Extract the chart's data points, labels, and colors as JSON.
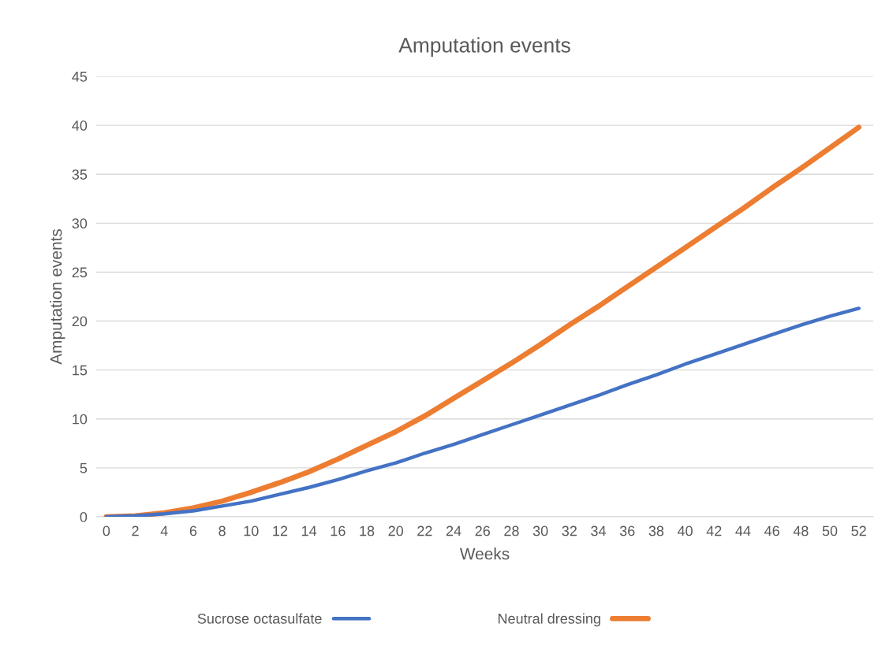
{
  "chart_data": {
    "type": "line",
    "title": "Amputation events",
    "xlabel": "Weeks",
    "ylabel": "Amputation events",
    "x": [
      0,
      2,
      4,
      6,
      8,
      10,
      12,
      14,
      16,
      18,
      20,
      22,
      24,
      26,
      28,
      30,
      32,
      34,
      36,
      38,
      40,
      42,
      44,
      46,
      48,
      50,
      52
    ],
    "series": [
      {
        "name": "Sucrose octasulfate",
        "color": "#4472c4",
        "values": [
          0,
          0.1,
          0.3,
          0.6,
          1.1,
          1.6,
          2.3,
          3.0,
          3.8,
          4.7,
          5.5,
          6.5,
          7.4,
          8.4,
          9.4,
          10.4,
          11.4,
          12.4,
          13.5,
          14.5,
          15.6,
          16.6,
          17.6,
          18.6,
          19.6,
          20.5,
          21.3
        ]
      },
      {
        "name": "Neutral dressing",
        "color": "#ed7d31",
        "values": [
          0,
          0.1,
          0.4,
          0.9,
          1.6,
          2.5,
          3.5,
          4.6,
          5.9,
          7.3,
          8.7,
          10.3,
          12.1,
          13.9,
          15.7,
          17.6,
          19.6,
          21.5,
          23.5,
          25.5,
          27.5,
          29.5,
          31.5,
          33.6,
          35.6,
          37.7,
          39.8
        ]
      }
    ],
    "xlim": [
      -0.7,
      53
    ],
    "xticks": [
      0,
      2,
      4,
      6,
      8,
      10,
      12,
      14,
      16,
      18,
      20,
      22,
      24,
      26,
      28,
      30,
      32,
      34,
      36,
      38,
      40,
      42,
      44,
      46,
      48,
      50,
      52
    ],
    "ylim": [
      0,
      45
    ],
    "yticks": [
      0,
      5,
      10,
      15,
      20,
      25,
      30,
      35,
      40,
      45
    ],
    "grid": "y",
    "legend": "bottom",
    "marker": "none",
    "line_style": "solid"
  }
}
